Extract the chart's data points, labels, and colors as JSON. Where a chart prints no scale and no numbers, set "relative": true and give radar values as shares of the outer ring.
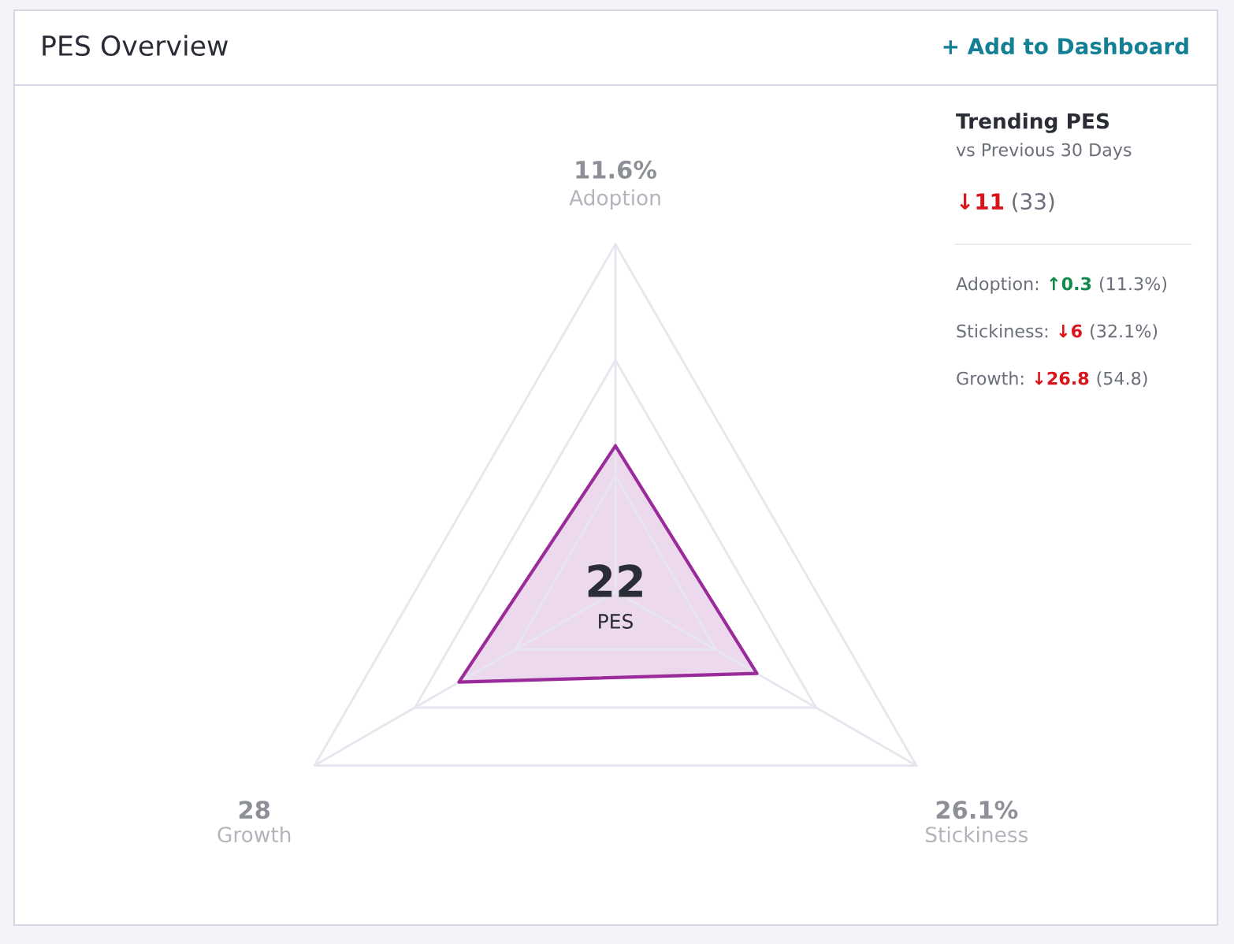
{
  "chart_data": {
    "type": "radar",
    "title": "PES Overview",
    "relative": true,
    "grid": true,
    "categories": [
      "Adoption",
      "Stickiness",
      "Growth"
    ],
    "series": [
      {
        "color": "#9b2a9b",
        "values": [
          0.42,
          0.47,
          0.52
        ]
      }
    ],
    "annotations": [
      "+ Add to Dashboard",
      "Trending PES",
      "vs Previous 30 Days",
      "↓11",
      "(33)",
      "Adoption:",
      "↑0.3",
      "(11.3%)",
      "Stickiness:",
      "↓6",
      "(32.1%)",
      "Growth:",
      "↓26.8",
      "(54.8)",
      "22",
      "PES",
      "11.6%",
      "26.1%",
      "28"
    ]
  }
}
